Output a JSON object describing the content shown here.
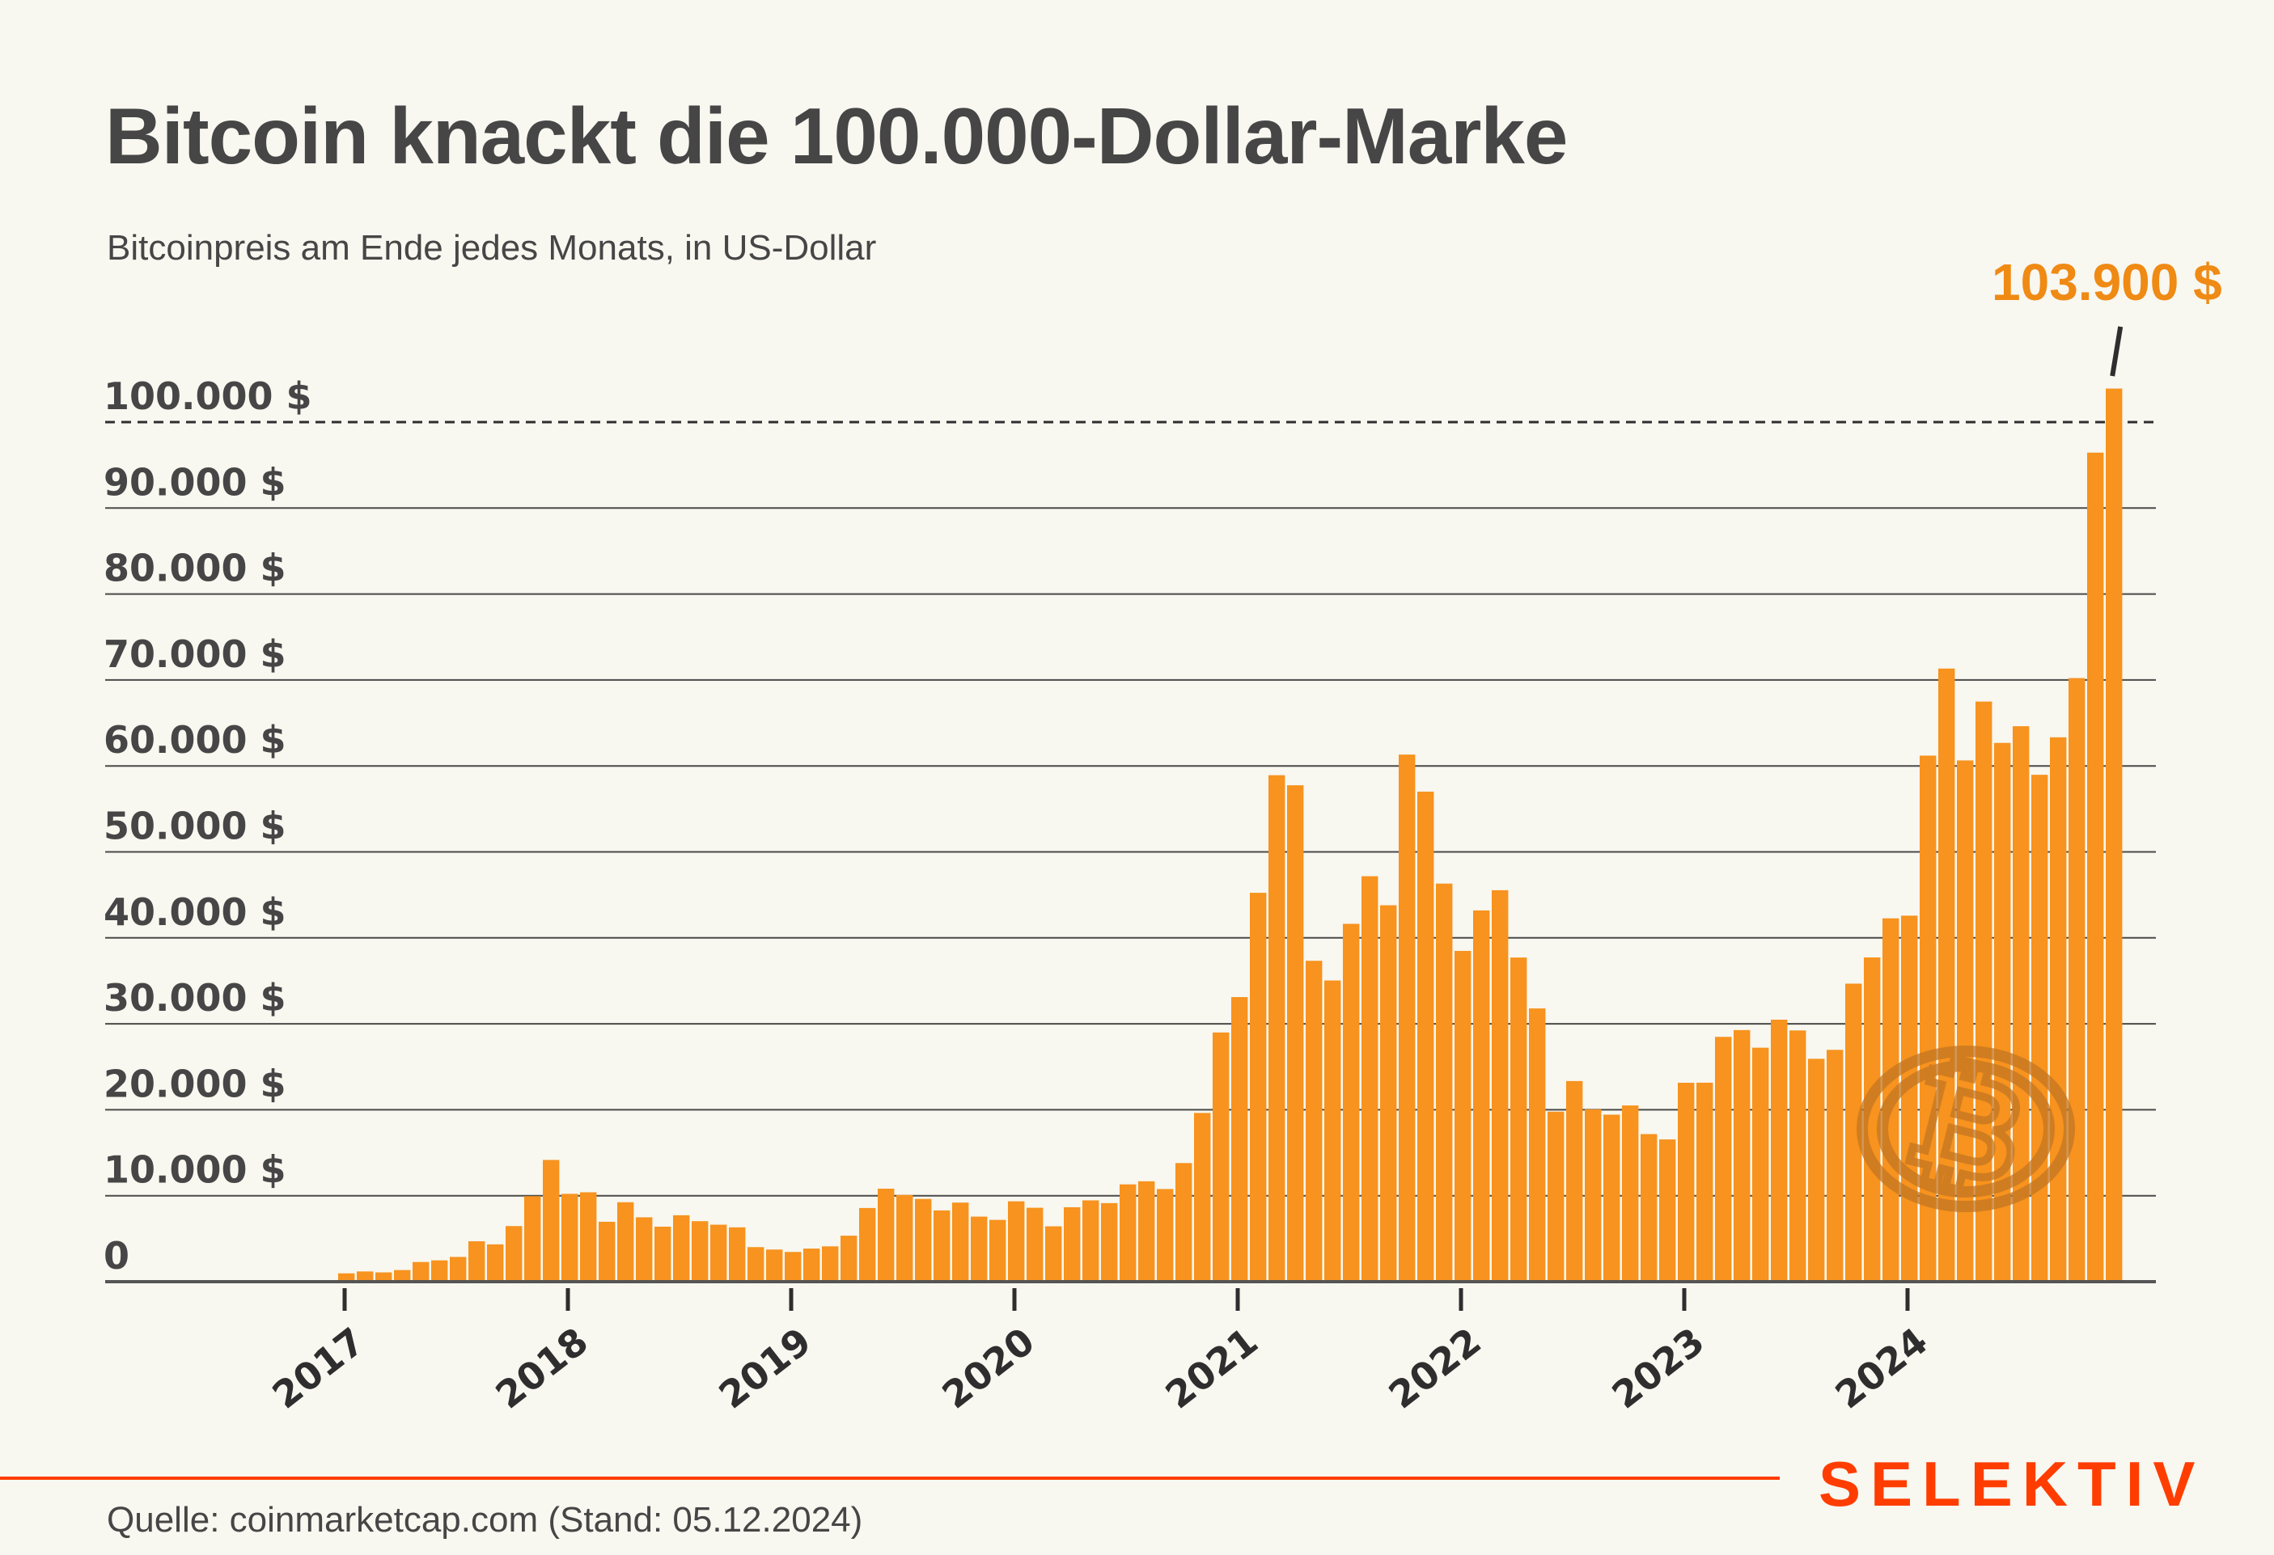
{
  "header": {
    "title": "Bitcoin knackt die 100.000-Dollar-Marke",
    "subtitle": "Bitcoinpreis am Ende jedes Monats, in US-Dollar"
  },
  "callout": {
    "label": "103.900 $",
    "value": 103900
  },
  "footer": {
    "source": "Quelle: coinmarketcap.com (Stand: 05.12.2024)",
    "brand": "SELEKTIV"
  },
  "colors": {
    "bar": "#f7931e",
    "accent": "#ef8a14",
    "brand": "#ff3d00",
    "text": "#464646",
    "background": "#f8f7f0",
    "watermark": "#c47622"
  },
  "chart_data": {
    "type": "bar",
    "title": "Bitcoin knackt die 100.000-Dollar-Marke",
    "subtitle": "Bitcoinpreis am Ende jedes Monats, in US-Dollar",
    "xlabel": "",
    "ylabel": "",
    "ylim": [
      0,
      100000
    ],
    "grid": true,
    "reference_line": {
      "value": 100000,
      "style": "dashed"
    },
    "yticks": [
      0,
      10000,
      20000,
      30000,
      40000,
      50000,
      60000,
      70000,
      80000,
      90000,
      100000
    ],
    "ytick_labels": [
      "0",
      "10.000 $",
      "20.000 $",
      "30.000 $",
      "40.000 $",
      "50.000 $",
      "60.000 $",
      "70.000 $",
      "80.000 $",
      "90.000 $",
      "100.000 $"
    ],
    "xtick_labels": [
      "2017",
      "2018",
      "2019",
      "2020",
      "2021",
      "2022",
      "2023",
      "2024"
    ],
    "start_month": "2017-01",
    "values": [
      970,
      1190,
      1080,
      1350,
      2290,
      2480,
      2880,
      4700,
      4340,
      6470,
      9950,
      14160,
      10220,
      10400,
      6970,
      9240,
      7490,
      6400,
      7730,
      7040,
      6630,
      6320,
      4020,
      3740,
      3460,
      3850,
      4110,
      5350,
      8570,
      10820,
      10090,
      9630,
      8290,
      9200,
      7570,
      7190,
      9350,
      8600,
      6440,
      8660,
      9460,
      9140,
      11320,
      11680,
      10780,
      13800,
      19630,
      28990,
      33110,
      45240,
      58920,
      57750,
      37330,
      35040,
      41630,
      47170,
      43790,
      61320,
      57010,
      46310,
      38480,
      43190,
      45540,
      37710,
      31790,
      19780,
      23340,
      20050,
      19430,
      20500,
      17170,
      16550,
      23140,
      23150,
      28480,
      29270,
      27220,
      30480,
      29230,
      25930,
      26970,
      34670,
      37720,
      42270,
      42580,
      61200,
      71330,
      60640,
      67490,
      62680,
      64620,
      58970,
      63330,
      70220,
      96450,
      103900
    ],
    "annotation": {
      "text": "103.900 $",
      "target_index": 95
    }
  }
}
